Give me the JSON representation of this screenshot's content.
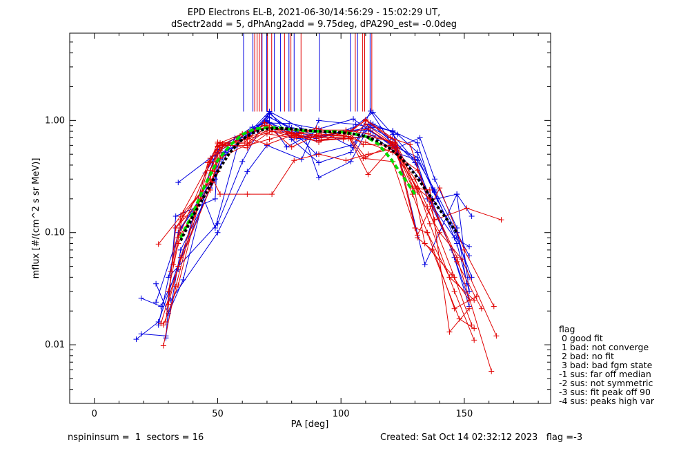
{
  "chart_data": {
    "type": "line",
    "title_line1": "EPD Electrons EL-B, 2021-06-30/14:56:29 - 15:02:29 UT,",
    "title_line2": "dSectr2add = 5, dPhAng2add = 9.75deg, dPA290_est=  -0.0deg",
    "xlabel": "PA [deg]",
    "ylabel": "mflux [#/(cm^2 s sr MeV)]",
    "xlim": [
      -10,
      185
    ],
    "ylim": [
      0.003,
      6.0
    ],
    "ylog": true,
    "x_ticks": [
      0,
      50,
      100,
      150
    ],
    "y_ticks": [
      {
        "value": 0.01,
        "label": "0.01"
      },
      {
        "value": 0.1,
        "label": "0.10"
      },
      {
        "value": 1.0,
        "label": "1.00"
      }
    ],
    "colors": {
      "red": "#e00000",
      "blue": "#0000e0",
      "green": "#00dd00",
      "black": "#000000"
    },
    "spikes": {
      "top_value": 6.0,
      "bottom_value": 1.2,
      "blue_x": [
        60.5,
        64.3,
        68.0,
        69.9,
        73.0,
        75.5,
        78.9,
        81.0,
        91.3,
        103.8,
        106.7,
        111.8
      ],
      "red_x": [
        65.0,
        66.0,
        66.9,
        67.8,
        70.2,
        71.9,
        77.1,
        79.7,
        83.8,
        105.8,
        108.8,
        109.6,
        112.5
      ]
    },
    "series": [
      {
        "color": "blue",
        "x": [
          17,
          26,
          35,
          47,
          51,
          63,
          70,
          80,
          91,
          103,
          112,
          121,
          130,
          137,
          146,
          152
        ],
        "y": [
          0.0112,
          0.016,
          0.06,
          0.25,
          0.45,
          0.76,
          1.09,
          0.86,
          0.72,
          0.8,
          0.87,
          0.68,
          0.42,
          0.19,
          0.06,
          0.025
        ]
      },
      {
        "color": "blue",
        "x": [
          19,
          29,
          35,
          49,
          53,
          65,
          71,
          82,
          90,
          104,
          113,
          123,
          131,
          138,
          147,
          152
        ],
        "y": [
          0.0125,
          0.012,
          0.07,
          0.3,
          0.52,
          0.8,
          1.15,
          0.75,
          0.5,
          0.6,
          0.93,
          0.75,
          0.52,
          0.23,
          0.08,
          0.03
        ]
      },
      {
        "color": "blue",
        "x": [
          19,
          27,
          34,
          45,
          50,
          62,
          71,
          78,
          91,
          105,
          111,
          121,
          131,
          137,
          147,
          153
        ],
        "y": [
          0.026,
          0.022,
          0.047,
          0.34,
          0.52,
          0.77,
          0.96,
          0.58,
          0.82,
          0.57,
          0.92,
          0.8,
          0.63,
          0.24,
          0.09,
          0.04
        ]
      },
      {
        "color": "blue",
        "x": [
          25,
          30,
          36,
          48,
          51,
          64,
          70,
          83,
          90,
          104,
          112,
          122,
          132,
          138,
          147,
          151
        ],
        "y": [
          0.035,
          0.019,
          0.038,
          0.43,
          0.57,
          0.87,
          0.98,
          0.73,
          0.69,
          0.82,
          0.81,
          0.56,
          0.7,
          0.3,
          0.11,
          0.035
        ]
      },
      {
        "color": "blue",
        "x": [
          29,
          33,
          49,
          50,
          62,
          71,
          82,
          91,
          105,
          113,
          121,
          131,
          137,
          145,
          152
        ],
        "y": [
          0.0115,
          0.14,
          0.2,
          0.55,
          0.74,
          1.07,
          0.79,
          0.7,
          0.86,
          1.18,
          0.75,
          0.41,
          0.17,
          0.07,
          0.022
        ]
      },
      {
        "color": "blue",
        "x": [
          26,
          34,
          44,
          49,
          59,
          70,
          80,
          91,
          104,
          113,
          122,
          130,
          135,
          146,
          152
        ],
        "y": [
          0.015,
          0.1,
          0.21,
          0.11,
          0.7,
          1.0,
          0.7,
          0.66,
          0.7,
          0.73,
          0.52,
          0.45,
          0.2,
          0.09,
          0.075
        ]
      },
      {
        "color": "blue",
        "x": [
          25,
          35,
          50,
          57,
          69,
          79,
          91,
          105,
          112,
          121,
          131,
          139,
          147,
          153
        ],
        "y": [
          0.024,
          0.11,
          0.35,
          0.7,
          0.95,
          0.94,
          0.84,
          1.03,
          0.8,
          0.6,
          0.47,
          0.2,
          0.22,
          0.14
        ]
      },
      {
        "color": "blue",
        "x": [
          34,
          48,
          57,
          71,
          84,
          91,
          104,
          112,
          122,
          131,
          138,
          147,
          152
        ],
        "y": [
          0.28,
          0.48,
          0.58,
          1.2,
          0.85,
          0.31,
          0.43,
          0.95,
          0.6,
          0.44,
          0.24,
          0.1,
          0.062
        ]
      },
      {
        "color": "blue",
        "x": [
          30,
          50,
          60,
          71,
          80,
          91,
          104,
          112,
          121,
          132,
          137,
          147,
          152
        ],
        "y": [
          0.04,
          0.12,
          0.43,
          1.2,
          0.68,
          0.42,
          0.52,
          1.21,
          0.6,
          0.3,
          0.2,
          0.1,
          0.04
        ]
      },
      {
        "color": "blue",
        "x": [
          31,
          50,
          62,
          70,
          84,
          91,
          106,
          113,
          121,
          134,
          147,
          152
        ],
        "y": [
          0.025,
          0.1,
          0.35,
          0.6,
          0.45,
          1.0,
          0.92,
          0.87,
          0.81,
          0.052,
          0.22,
          0.03
        ]
      },
      {
        "color": "red",
        "x": [
          26,
          35,
          47,
          50,
          62,
          70,
          80,
          90,
          102,
          111,
          120,
          130,
          135,
          146,
          153
        ],
        "y": [
          0.079,
          0.14,
          0.43,
          0.64,
          0.62,
          0.9,
          0.58,
          0.73,
          0.78,
          0.84,
          0.63,
          0.3,
          0.17,
          0.04,
          0.015
        ]
      },
      {
        "color": "red",
        "x": [
          28,
          33,
          46,
          51,
          60,
          69,
          80,
          91,
          103,
          110,
          121,
          131,
          136,
          147,
          161
        ],
        "y": [
          0.0098,
          0.033,
          0.42,
          0.63,
          0.76,
          0.9,
          0.73,
          0.66,
          0.69,
          0.64,
          0.52,
          0.36,
          0.2,
          0.06,
          0.0058
        ]
      },
      {
        "color": "red",
        "x": [
          27,
          34,
          48,
          50,
          60,
          70,
          80,
          92,
          102,
          111,
          121,
          129,
          136,
          144,
          152
        ],
        "y": [
          0.0155,
          0.05,
          0.28,
          0.58,
          0.75,
          0.88,
          0.82,
          0.82,
          0.82,
          0.76,
          0.63,
          0.25,
          0.24,
          0.013,
          0.021
        ]
      },
      {
        "color": "red",
        "x": [
          29,
          33,
          47,
          51,
          62,
          72,
          82,
          92,
          104,
          110,
          120,
          131,
          136,
          146,
          154
        ],
        "y": [
          0.016,
          0.11,
          0.24,
          0.6,
          0.68,
          0.8,
          0.7,
          0.7,
          0.69,
          0.47,
          0.6,
          0.25,
          0.12,
          0.03,
          0.011
        ]
      },
      {
        "color": "red",
        "x": [
          28,
          34,
          47,
          51,
          62,
          71,
          82,
          92,
          101,
          111,
          122,
          130,
          134,
          145,
          152
        ],
        "y": [
          0.015,
          0.034,
          0.46,
          0.54,
          0.78,
          0.87,
          0.75,
          0.68,
          0.68,
          0.72,
          0.64,
          0.23,
          0.08,
          0.042,
          0.025
        ]
      },
      {
        "color": "red",
        "x": [
          30,
          35,
          47,
          51,
          63,
          71,
          80,
          91,
          102,
          109,
          121,
          129,
          135,
          144,
          154
        ],
        "y": [
          0.023,
          0.06,
          0.36,
          0.57,
          0.72,
          0.81,
          0.76,
          0.64,
          0.8,
          0.61,
          0.6,
          0.22,
          0.1,
          0.04,
          0.025
        ]
      },
      {
        "color": "red",
        "x": [
          30,
          34,
          48,
          51,
          63,
          71,
          83,
          90,
          104,
          110,
          121,
          130,
          136,
          147,
          157
        ],
        "y": [
          0.03,
          0.08,
          0.35,
          0.46,
          0.63,
          0.86,
          0.76,
          0.85,
          0.7,
          0.93,
          0.62,
          0.26,
          0.2,
          0.055,
          0.021
        ]
      },
      {
        "color": "red",
        "x": [
          31,
          35,
          47,
          50,
          62,
          70,
          81,
          91,
          103,
          111,
          122,
          130,
          135,
          146,
          155
        ],
        "y": [
          0.045,
          0.13,
          0.3,
          0.62,
          0.57,
          0.76,
          0.7,
          0.76,
          0.72,
          0.33,
          0.62,
          0.11,
          0.1,
          0.021,
          0.027
        ]
      },
      {
        "color": "red",
        "x": [
          32,
          36,
          48,
          51,
          62,
          72,
          81,
          91,
          102,
          111,
          123,
          131,
          137,
          148,
          154
        ],
        "y": [
          0.052,
          0.15,
          0.3,
          0.22,
          0.22,
          0.22,
          0.44,
          0.5,
          0.44,
          0.5,
          0.57,
          0.09,
          0.07,
          0.017,
          0.014
        ]
      },
      {
        "color": "red",
        "x": [
          33,
          36,
          50,
          52,
          62,
          71,
          80,
          91,
          103,
          109,
          121,
          131,
          140,
          150,
          162
        ],
        "y": [
          0.11,
          0.14,
          0.35,
          0.6,
          0.6,
          0.68,
          0.78,
          0.74,
          0.72,
          0.46,
          0.43,
          0.095,
          0.25,
          0.07,
          0.022
        ]
      },
      {
        "color": "red",
        "x": [
          34,
          47,
          50,
          62,
          70,
          84,
          92,
          101,
          110,
          120,
          128,
          138,
          151,
          165
        ],
        "y": [
          0.09,
          0.42,
          0.59,
          0.7,
          0.61,
          0.79,
          0.79,
          0.74,
          1.0,
          0.7,
          0.61,
          0.13,
          0.165,
          0.13
        ]
      },
      {
        "color": "red",
        "x": [
          35,
          48,
          52,
          61,
          69,
          81,
          91,
          101,
          110,
          122,
          131,
          140,
          149,
          163
        ],
        "y": [
          0.095,
          0.3,
          0.62,
          0.64,
          0.96,
          0.73,
          0.72,
          0.7,
          1.02,
          0.67,
          0.23,
          0.1,
          0.058,
          0.012
        ]
      },
      {
        "color": "green",
        "x": [
          35,
          40,
          45,
          50,
          55,
          60,
          65,
          70,
          75,
          80,
          85,
          90,
          95,
          100,
          105,
          110,
          115,
          120,
          125,
          130
        ],
        "y": [
          0.09,
          0.15,
          0.27,
          0.44,
          0.6,
          0.75,
          0.84,
          0.86,
          0.86,
          0.83,
          0.81,
          0.8,
          0.8,
          0.79,
          0.76,
          0.72,
          0.62,
          0.46,
          0.32,
          0.22
        ]
      },
      {
        "color": "black",
        "x": [
          35,
          40,
          45,
          50,
          55,
          60,
          65,
          70,
          75,
          80,
          85,
          90,
          95,
          100,
          105,
          110,
          115,
          120,
          125,
          130,
          135,
          140,
          145,
          147
        ],
        "y": [
          0.085,
          0.14,
          0.22,
          0.35,
          0.52,
          0.68,
          0.79,
          0.84,
          0.85,
          0.84,
          0.82,
          0.8,
          0.79,
          0.78,
          0.76,
          0.72,
          0.65,
          0.56,
          0.45,
          0.33,
          0.23,
          0.16,
          0.115,
          0.1
        ]
      }
    ]
  },
  "legend": {
    "title": "flag",
    "items": [
      " 0 good fit",
      " 1 bad: not converge",
      " 2 bad: no fit",
      " 3 bad: bad fgm state",
      "-1 sus: far off median",
      "-2 sus: not symmetric",
      "-3 sus: fit peak off 90",
      "-4 sus: peaks high var"
    ]
  },
  "footer": {
    "left": "nspininsum =  1  sectors = 16",
    "right": "Created: Sat Oct 14 02:32:12 2023   flag =-3"
  }
}
